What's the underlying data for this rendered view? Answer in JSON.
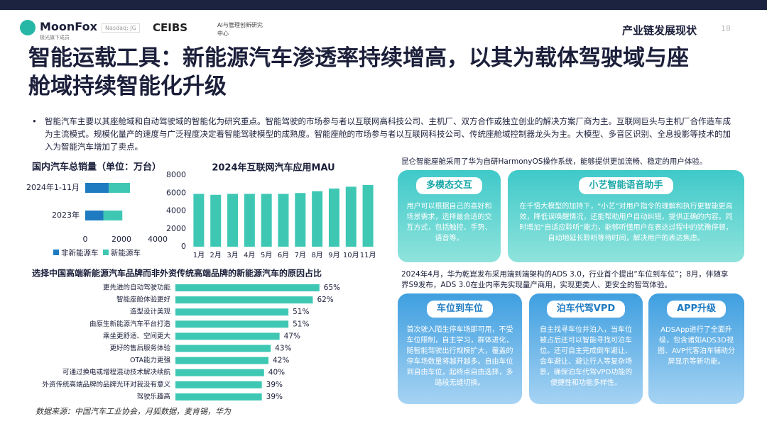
{
  "header": {
    "brand": "MoonFox",
    "brand_sub": "极光旗下成员",
    "ticker": "Nasdaq: JG",
    "partner": "CEIBS",
    "partner_sub": "AI与管理创新研究中心",
    "section": "产业链发展现状",
    "page": "18"
  },
  "title": "智能运载工具：新能源汽车渗透率持续增高，以其为载体驾驶域与座舱域持续智能化升级",
  "bullet": "智能汽车主要以其座舱域和自动驾驶域的智能化为研究重点。智能驾驶的市场参与者以互联网高科技公司、主机厂、双方合作或独立创业的解决方案厂商为主。互联网巨头与主机厂合作造车成为主流模式。规模化量产的速度与广泛程度决定着智能驾驶模型的成熟度。智能座舱的市场参与者以互联网科技公司、传统座舱域控制器龙头为主。大模型、多音区识别、全息投影等技术的加入为智能汽车增加了卖点。",
  "chart_data": [
    {
      "type": "stacked-hbar",
      "title": "国内汽车总销量（单位：万台）",
      "categories": [
        "2024年1-11月",
        "2023年"
      ],
      "series": [
        {
          "name": "非新能源车",
          "color": "#1f7bc1",
          "values": [
            1300,
            1000
          ]
        },
        {
          "name": "新能源车",
          "color": "#3ec8b4",
          "values": [
            1170,
            1050
          ]
        }
      ],
      "xlim": [
        0,
        4000
      ],
      "xticks": [
        0,
        2000,
        4000
      ]
    },
    {
      "type": "bar",
      "title": "2024年互联网汽车应用MAU",
      "categories": [
        "1月",
        "2月",
        "3月",
        "4月",
        "5月",
        "6月",
        "7月",
        "8月",
        "9月",
        "10月",
        "11月"
      ],
      "values": [
        5900,
        5800,
        5900,
        5900,
        5900,
        5900,
        6000,
        6200,
        6500,
        6700,
        6900
      ],
      "color": "#3ec8b4",
      "ylim": [
        0,
        8000
      ],
      "yticks": [
        0,
        2000,
        4000,
        6000,
        8000
      ]
    },
    {
      "type": "hbar",
      "title": "选择中国高端新能源汽车品牌而非外资传统高端品牌的新能源汽车的原因占比",
      "categories": [
        "更先进的自动驾驶功能",
        "智能座舱体验更好",
        "造型设计美观",
        "由原生新能源汽车平台打造",
        "乘坐更舒适、空间更大",
        "更好的售后服务体验",
        "OTA能力更强",
        "可通过换电或增程混动技术解决续航",
        "外资传统高端品牌的品牌光环对我没有意义",
        "驾驶乐趣高"
      ],
      "values": [
        65,
        62,
        51,
        51,
        47,
        43,
        42,
        40,
        39,
        39
      ],
      "value_labels": [
        "65%",
        "62%",
        "51%",
        "51%",
        "47%",
        "43%",
        "42%",
        "40%",
        "39%",
        "39%"
      ],
      "color": "#3ec8b4"
    }
  ],
  "cockpit": {
    "intro": "昆仑智能座舱采用了华为自研HarmonyOS操作系统，能够提供更加流畅、稳定的用户体验。",
    "panels": [
      {
        "title": "多模态交互",
        "text": "用户可以根据自己的喜好和场景需求，选择最合适的交互方式，包括触控、手势、语音等。"
      },
      {
        "title": "小艺智能语音助手",
        "text": "在千悟大模型的加持下，“小艺”对用户指令的理解和执行更智能更高效，降低误唤醒情况，还能帮助用户自动纠错，提供正确的内容。同时增加“自适应聆听”能力，能够听懂用户在表达过程中的犹豫停顿，自动地延长聆听等待时间，解决用户的表达焦虑。"
      }
    ]
  },
  "driving": {
    "intro": "2024年4月，华为乾崑发布采用端到端架构的ADS 3.0，行业首个提出“车位到车位”；8月，伴随享界S9发布，ADS 3.0在业内率先实现量产商用，实现更类人、更安全的智驾体验。",
    "panels": [
      {
        "title": "车位到车位",
        "text": "首次驶入陌生停车场即可用，不受车位限制，自主学习，群体进化，随智能驾驶出行规模扩大，覆盖的停车场数量将越开越多。自由车位到自由车位，起终点自由选择，多路段无缝切换。"
      },
      {
        "title": "泊车代驾VPD",
        "text": "自主找寻车位并泊入，当车位被占后还可以智能寻找可泊车位。还可自主完成倒车避让、会车避让、避让行人等复杂场景，确保泊车代驾VPD功能的便捷性和功能多样性。"
      },
      {
        "title": "APP升级",
        "text": "ADSApp进行了全面升级，包含诸如ADS3D视图、AVP代客泊车辅助分屏显示等新功能。"
      }
    ]
  },
  "source": "数据来源：中国汽车工业协会，月狐数据，麦肯锡，华为"
}
